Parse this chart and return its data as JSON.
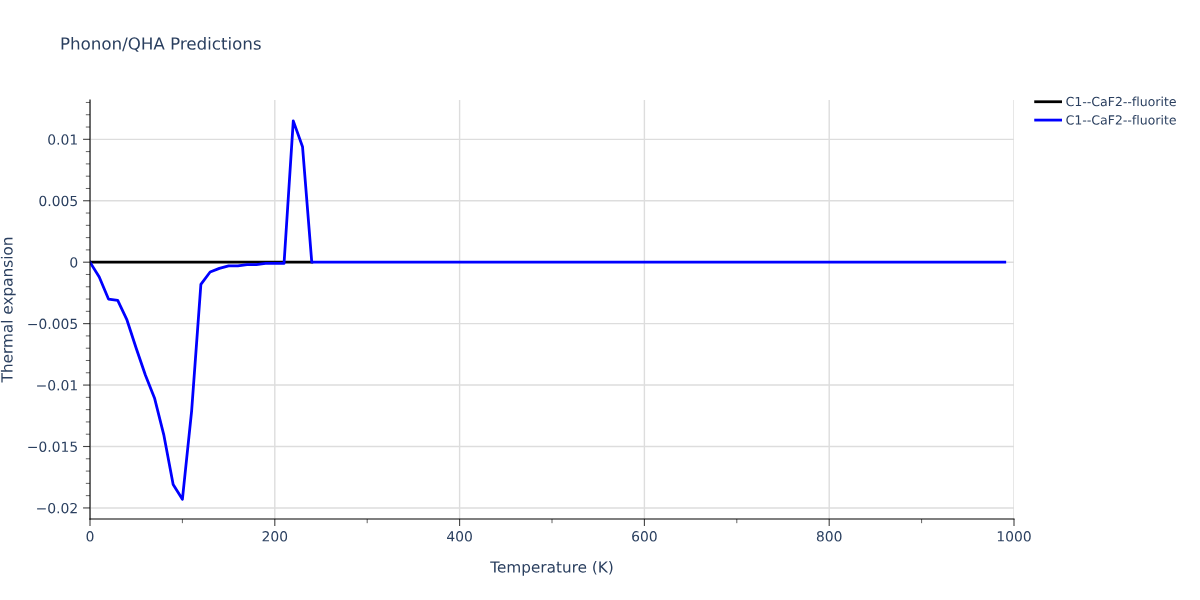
{
  "chart_data": {
    "type": "line",
    "title": "Phonon/QHA Predictions",
    "xlabel": "Temperature (K)",
    "ylabel": "Thermal expansion",
    "x": [
      0,
      10,
      20,
      30,
      40,
      50,
      60,
      70,
      80,
      90,
      100,
      110,
      120,
      130,
      140,
      150,
      160,
      170,
      180,
      190,
      200,
      210,
      220,
      230,
      240,
      250,
      260,
      270,
      280,
      290,
      300,
      310,
      320,
      330,
      340,
      350,
      360,
      370,
      380,
      390,
      400,
      410,
      420,
      430,
      440,
      450,
      460,
      470,
      480,
      490,
      500,
      510,
      520,
      530,
      540,
      550,
      560,
      570,
      580,
      590,
      600,
      610,
      620,
      630,
      640,
      650,
      660,
      670,
      680,
      690,
      700,
      710,
      720,
      730,
      740,
      750,
      760,
      770,
      780,
      790,
      800,
      810,
      820,
      830,
      840,
      850,
      860,
      870,
      880,
      890,
      900,
      910,
      920,
      930,
      940,
      950,
      960,
      970,
      980,
      990
    ],
    "series": [
      {
        "name": "C1--CaF2--fluorite",
        "color": "#000000",
        "values": [
          0,
          0,
          0,
          0,
          0,
          0,
          0,
          0,
          0,
          0,
          0,
          0,
          0,
          0,
          0,
          0,
          0,
          0,
          0,
          0,
          0,
          0,
          0,
          0,
          0,
          null,
          null,
          null,
          null,
          null,
          null,
          null,
          null,
          null,
          null,
          null,
          null,
          null,
          null,
          null,
          null,
          null,
          null,
          null,
          null,
          null,
          null,
          null,
          null,
          null,
          null,
          null,
          null,
          null,
          null,
          null,
          null,
          null,
          null,
          null,
          null,
          null,
          null,
          null,
          null,
          null,
          null,
          null,
          null,
          null,
          null,
          null,
          null,
          null,
          null,
          null,
          null,
          null,
          null,
          null,
          null,
          null,
          null,
          null,
          null,
          null,
          null,
          null,
          null,
          null,
          null,
          null,
          null,
          null,
          null,
          null,
          null,
          null,
          null,
          null
        ]
      },
      {
        "name": "C1--CaF2--fluorite",
        "color": "#0000ff",
        "values": [
          0,
          -0.0012,
          -0.003,
          -0.0031,
          -0.0047,
          -0.007,
          -0.0092,
          -0.0111,
          -0.0141,
          -0.0181,
          -0.0193,
          -0.0121,
          -0.0018,
          -0.0008,
          -0.0005,
          -0.0003,
          -0.0003,
          -0.0002,
          -0.0002,
          -0.0001,
          -0.0001,
          -0.0001,
          0.0115,
          0.0094,
          0,
          0,
          0,
          0,
          0,
          0,
          0,
          0,
          0,
          0,
          0,
          0,
          0,
          0,
          0,
          0,
          0,
          0,
          0,
          0,
          0,
          0,
          0,
          0,
          0,
          0,
          0,
          0,
          0,
          0,
          0,
          0,
          0,
          0,
          0,
          0,
          0,
          0,
          0,
          0,
          0,
          0,
          0,
          0,
          0,
          0,
          0,
          0,
          0,
          0,
          0,
          0,
          0,
          0,
          0,
          0,
          0,
          0,
          0,
          0,
          0,
          0,
          0,
          0,
          0,
          0,
          0,
          0,
          0,
          0,
          0,
          0,
          0,
          0,
          0,
          0
        ]
      }
    ],
    "xlim": [
      0,
      1000
    ],
    "xticks": [
      0,
      200,
      400,
      600,
      800,
      1000
    ],
    "ylim": [
      -0.0209,
      0.0132
    ],
    "yticks": [
      {
        "value": -0.02,
        "label": "−0.02"
      },
      {
        "value": -0.015,
        "label": "−0.015"
      },
      {
        "value": -0.01,
        "label": "−0.01"
      },
      {
        "value": -0.005,
        "label": "−0.005"
      },
      0,
      0.005,
      0.01
    ],
    "grid": true,
    "legend": "top right",
    "marker": "none",
    "line_style": "solid"
  }
}
